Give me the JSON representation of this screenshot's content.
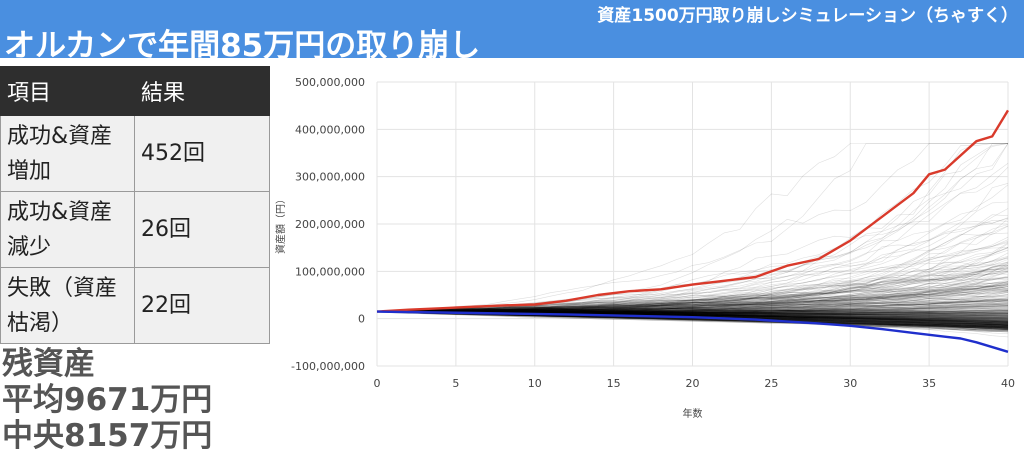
{
  "header": {
    "subtitle": "資産1500万円取り崩しシミュレーション（ちゃすく）",
    "title": "オルカンで年間85万円の取り崩し"
  },
  "table": {
    "headers": [
      "項目",
      "結果"
    ],
    "rows": [
      {
        "item": "成功&資産増加",
        "result": "452回"
      },
      {
        "item": "成功&資産減少",
        "result": "26回"
      },
      {
        "item": "失敗（資産枯渇）",
        "result": "22回"
      }
    ]
  },
  "summary": {
    "line1": "残資産",
    "line2": "平均9671万円",
    "line3": "中央8157万円"
  },
  "chart_data": {
    "type": "line",
    "xlabel": "年数",
    "ylabel": "資産額（円）",
    "xlim": [
      0,
      40
    ],
    "ylim": [
      -100000000,
      500000000
    ],
    "x_ticks": [
      0,
      5,
      10,
      15,
      20,
      25,
      30,
      35,
      40
    ],
    "y_ticks": [
      -100000000,
      0,
      100000000,
      200000000,
      300000000,
      400000000,
      500000000
    ],
    "y_tick_labels": [
      "-100,000,000",
      "0",
      "100,000,000",
      "200,000,000",
      "300,000,000",
      "400,000,000",
      "500,000,000"
    ],
    "grid": true,
    "simulation_count": 500,
    "series": [
      {
        "role": "max",
        "color": "#d93a2b",
        "x": [
          0,
          2,
          4,
          6,
          8,
          10,
          12,
          14,
          16,
          18,
          20,
          22,
          24,
          26,
          28,
          30,
          32,
          34,
          35,
          36,
          38,
          39,
          40
        ],
        "values": [
          15000000,
          19000000,
          22000000,
          25000000,
          28000000,
          30000000,
          38000000,
          50000000,
          58000000,
          62000000,
          72000000,
          80000000,
          88000000,
          112000000,
          126000000,
          165000000,
          215000000,
          265000000,
          305000000,
          315000000,
          375000000,
          385000000,
          440000000
        ]
      },
      {
        "role": "min",
        "color": "#1f2fcc",
        "x": [
          0,
          4,
          8,
          12,
          16,
          20,
          24,
          28,
          30,
          32,
          34,
          36,
          37,
          38,
          40
        ],
        "values": [
          15000000,
          13000000,
          11000000,
          9000000,
          6000000,
          3000000,
          -2000000,
          -10000000,
          -15000000,
          -22000000,
          -30000000,
          -38000000,
          -42000000,
          -50000000,
          -70000000
        ]
      }
    ],
    "colors": {
      "simulations": "#000000",
      "max": "#d93a2b",
      "min": "#1f2fcc"
    }
  }
}
